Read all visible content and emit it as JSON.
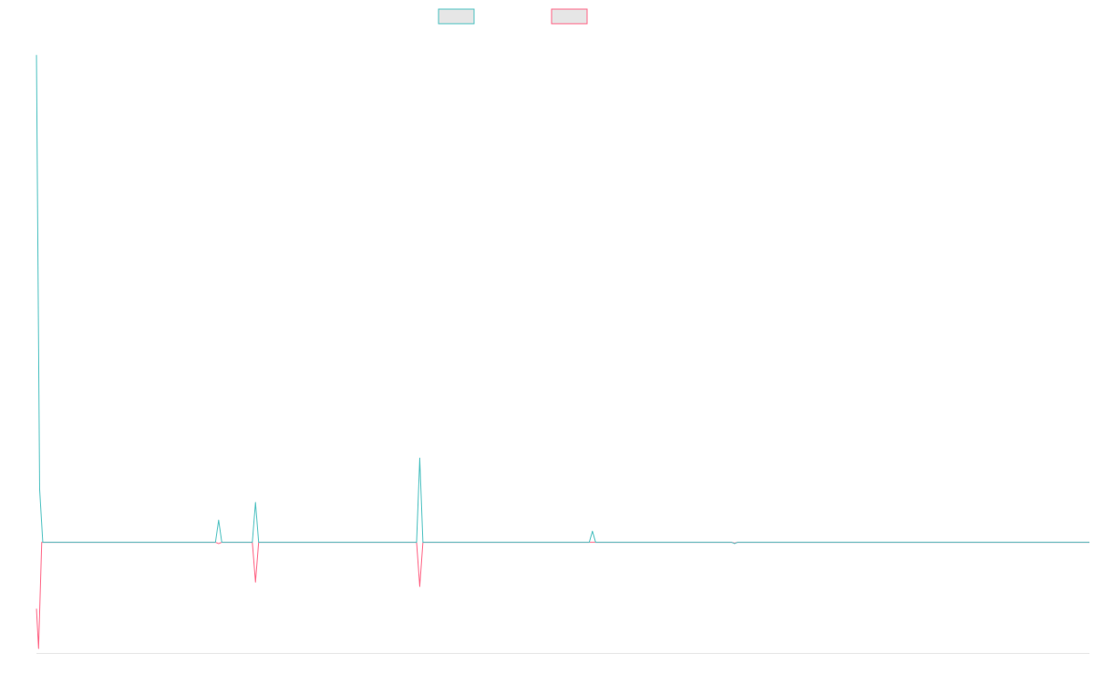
{
  "chart_data": {
    "type": "line",
    "title": "",
    "xlabel": "",
    "ylabel": "",
    "grid": false,
    "legend_position": "top-center",
    "x_count": 100,
    "ylim": [
      -0.25,
      1.15
    ],
    "series": [
      {
        "color": "#4bc0c0",
        "fill": "#e6e6e6",
        "points": [
          [
            0,
            1.1
          ],
          [
            0.3,
            0.12
          ],
          [
            0.6,
            0
          ],
          [
            17,
            0
          ],
          [
            17.3,
            0.05
          ],
          [
            17.6,
            0
          ],
          [
            20.5,
            0
          ],
          [
            20.8,
            0.09
          ],
          [
            21.1,
            0
          ],
          [
            36.1,
            0
          ],
          [
            36.4,
            0.19
          ],
          [
            36.7,
            0
          ],
          [
            52.5,
            0
          ],
          [
            52.8,
            0.025
          ],
          [
            53.1,
            0
          ],
          [
            66,
            0
          ],
          [
            66.3,
            -0.003
          ],
          [
            66.6,
            0
          ],
          [
            100,
            0
          ]
        ]
      },
      {
        "color": "#ff6384",
        "fill": "#e6e6e6",
        "points": [
          [
            0,
            -0.15
          ],
          [
            0.2,
            -0.24
          ],
          [
            0.5,
            0
          ],
          [
            17,
            0
          ],
          [
            17.3,
            -0.003
          ],
          [
            17.6,
            0
          ],
          [
            20.5,
            0
          ],
          [
            20.8,
            -0.09
          ],
          [
            21.1,
            0
          ],
          [
            36.1,
            0
          ],
          [
            36.4,
            -0.1
          ],
          [
            36.7,
            0
          ],
          [
            66,
            0
          ],
          [
            66.3,
            -0.002
          ],
          [
            66.6,
            0
          ],
          [
            100,
            0
          ]
        ]
      }
    ]
  }
}
